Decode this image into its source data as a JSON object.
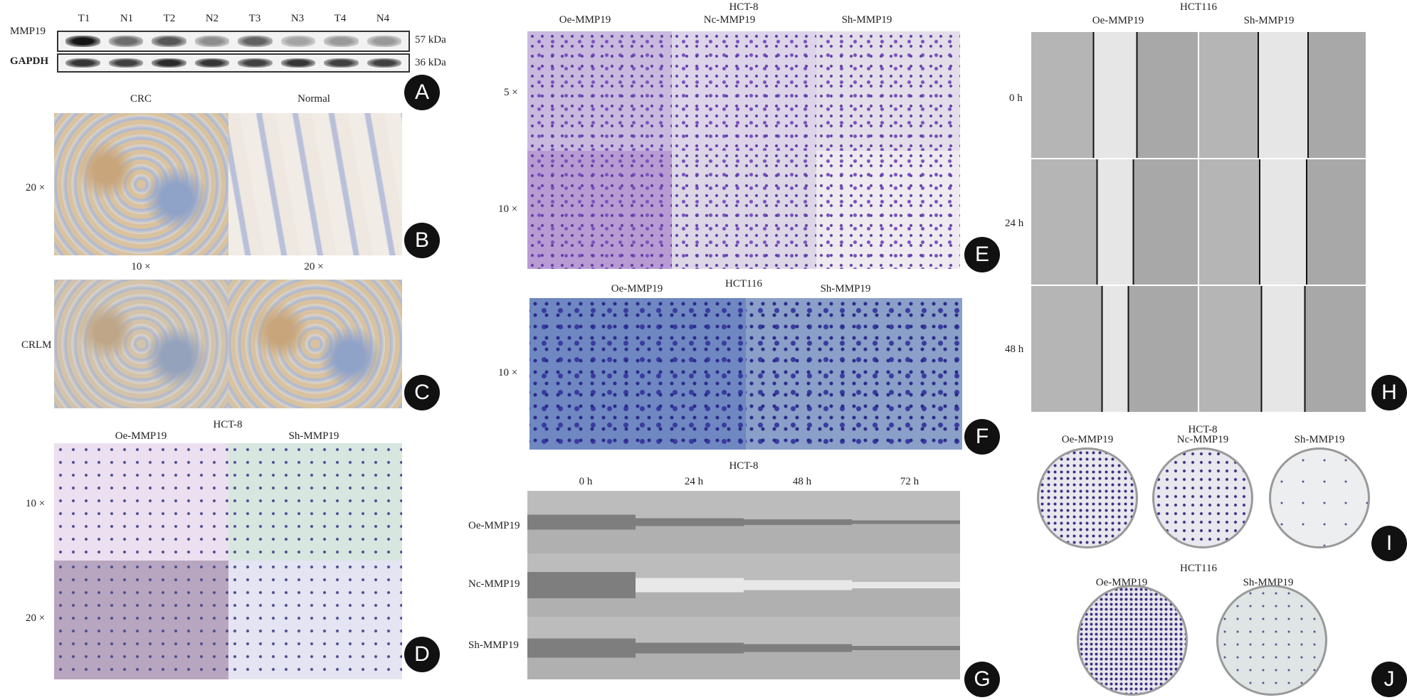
{
  "panel_a": {
    "lanes": [
      "T1",
      "N1",
      "T2",
      "N2",
      "T3",
      "N3",
      "T4",
      "N4"
    ],
    "rows": [
      {
        "protein": "MMP19",
        "size": "57 kDa",
        "intensity": [
          0.95,
          0.55,
          0.65,
          0.4,
          0.6,
          0.3,
          0.35,
          0.35
        ]
      },
      {
        "protein": "GAPDH",
        "size": "36 kDa",
        "intensity": [
          0.8,
          0.75,
          0.85,
          0.8,
          0.75,
          0.8,
          0.75,
          0.75
        ]
      }
    ],
    "badge": "A"
  },
  "panel_b": {
    "cols": [
      "CRC",
      "Normal"
    ],
    "row": "20 ×",
    "badge": "B"
  },
  "panel_c": {
    "cols": [
      "10 ×",
      "20 ×"
    ],
    "row": "CRLM",
    "badge": "C"
  },
  "panel_d": {
    "title": "HCT-8",
    "cols": [
      "Oe-MMP19",
      "Sh-MMP19"
    ],
    "rows": [
      "10 ×",
      "20 ×"
    ],
    "badge": "D"
  },
  "panel_e": {
    "title": "HCT-8",
    "cols": [
      "Oe-MMP19",
      "Nc-MMP19",
      "Sh-MMP19"
    ],
    "rows": [
      "5 ×",
      "10 ×"
    ],
    "badge": "E"
  },
  "panel_f": {
    "title": "HCT116",
    "cols": [
      "Oe-MMP19",
      "Sh-MMP19"
    ],
    "row": "10 ×",
    "badge": "F"
  },
  "panel_g": {
    "title": "HCT-8",
    "cols": [
      "0 h",
      "24 h",
      "48 h",
      "72 h"
    ],
    "rows": [
      "Oe-MMP19",
      "Nc-MMP19",
      "Sh-MMP19"
    ],
    "badge": "G"
  },
  "panel_h": {
    "title": "HCT116",
    "cols": [
      "Oe-MMP19",
      "Sh-MMP19"
    ],
    "rows": [
      "0 h",
      "24 h",
      "48 h"
    ],
    "badge": "H"
  },
  "panel_i": {
    "title": "HCT-8",
    "cols": [
      "Oe-MMP19",
      "Nc-MMP19",
      "Sh-MMP19"
    ],
    "badge": "I"
  },
  "panel_j": {
    "title": "HCT116",
    "cols": [
      "Oe-MMP19",
      "Sh-MMP19"
    ],
    "badge": "J"
  }
}
